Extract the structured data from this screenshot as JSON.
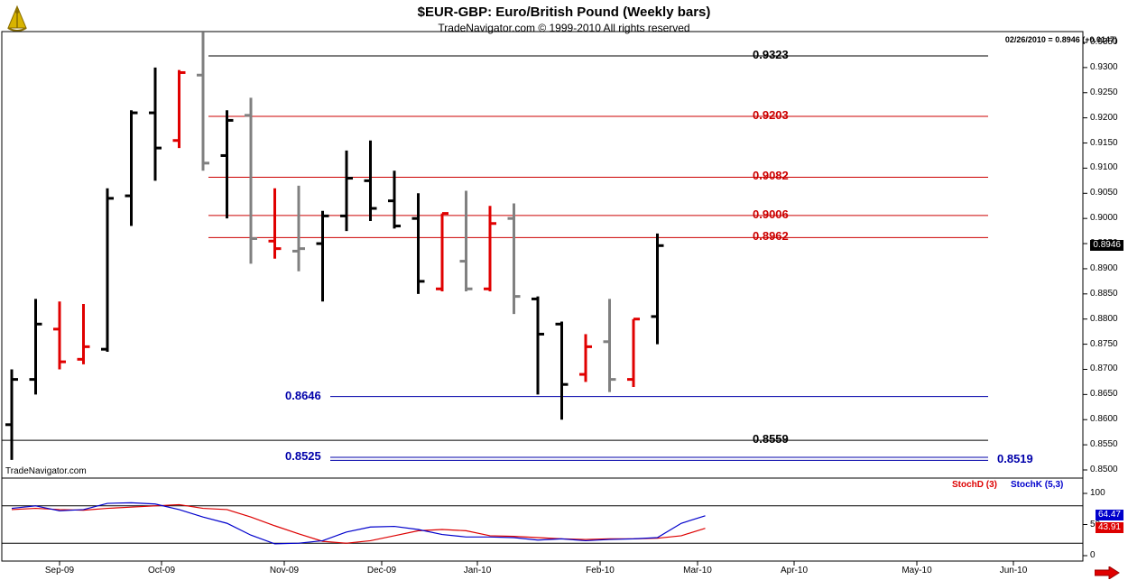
{
  "header": {
    "title": "$EUR-GBP:  Euro/British Pound  (Weekly bars)",
    "subtitle": "TradeNavigator.com © 1999-2010 All rights reserved"
  },
  "readout": "02/26/2010 = 0.8946 (+0.0147)",
  "watermark": "TradeNavigator.com",
  "colors": {
    "up": "#000000",
    "down": "#e00000",
    "neutral": "#808080",
    "support": "#0000aa",
    "resistance": "#cc0000",
    "stochK": "#0000cc",
    "stochD": "#dd0000"
  },
  "chart_data": [
    {
      "type": "ohlc",
      "title": "$EUR-GBP:  Euro/British Pound  (Weekly bars)",
      "ylim": [
        0.85,
        0.935
      ],
      "y_ticks": [
        "0.9350",
        "0.9300",
        "0.9250",
        "0.9200",
        "0.9150",
        "0.9100",
        "0.9050",
        "0.9000",
        "0.8950",
        "0.8900",
        "0.8850",
        "0.8800",
        "0.8750",
        "0.8700",
        "0.8650",
        "0.8600",
        "0.8550",
        "0.8500"
      ],
      "x_labels": [
        "Sep-09",
        "Oct-09",
        "Nov-09",
        "Dec-09",
        "Jan-10",
        "Feb-10",
        "Mar-10",
        "Apr-10",
        "May-10",
        "Jun-10"
      ],
      "last_price": "0.8946",
      "bars": [
        {
          "o": 0.859,
          "h": 0.87,
          "l": 0.852,
          "c": 0.868,
          "color": "up"
        },
        {
          "o": 0.868,
          "h": 0.884,
          "l": 0.865,
          "c": 0.879,
          "color": "up"
        },
        {
          "o": 0.878,
          "h": 0.8835,
          "l": 0.87,
          "c": 0.8715,
          "color": "down"
        },
        {
          "o": 0.872,
          "h": 0.883,
          "l": 0.871,
          "c": 0.8745,
          "color": "down"
        },
        {
          "o": 0.874,
          "h": 0.906,
          "l": 0.8735,
          "c": 0.904,
          "color": "up"
        },
        {
          "o": 0.9045,
          "h": 0.9215,
          "l": 0.8985,
          "c": 0.921,
          "color": "up"
        },
        {
          "o": 0.921,
          "h": 0.93,
          "l": 0.9075,
          "c": 0.914,
          "color": "up"
        },
        {
          "o": 0.9155,
          "h": 0.9295,
          "l": 0.914,
          "c": 0.929,
          "color": "down"
        },
        {
          "o": 0.9285,
          "h": 0.937,
          "l": 0.9095,
          "c": 0.911,
          "color": "neutral"
        },
        {
          "o": 0.9125,
          "h": 0.9215,
          "l": 0.9,
          "c": 0.9195,
          "color": "up"
        },
        {
          "o": 0.9205,
          "h": 0.924,
          "l": 0.891,
          "c": 0.896,
          "color": "neutral"
        },
        {
          "o": 0.8955,
          "h": 0.906,
          "l": 0.892,
          "c": 0.894,
          "color": "down"
        },
        {
          "o": 0.8935,
          "h": 0.9065,
          "l": 0.8895,
          "c": 0.894,
          "color": "neutral"
        },
        {
          "o": 0.895,
          "h": 0.9015,
          "l": 0.8835,
          "c": 0.9005,
          "color": "up"
        },
        {
          "o": 0.9005,
          "h": 0.9135,
          "l": 0.8975,
          "c": 0.908,
          "color": "up"
        },
        {
          "o": 0.9075,
          "h": 0.9155,
          "l": 0.8995,
          "c": 0.902,
          "color": "up"
        },
        {
          "o": 0.9035,
          "h": 0.9095,
          "l": 0.898,
          "c": 0.8985,
          "color": "up"
        },
        {
          "o": 0.9,
          "h": 0.905,
          "l": 0.885,
          "c": 0.8875,
          "color": "up"
        },
        {
          "o": 0.886,
          "h": 0.901,
          "l": 0.8855,
          "c": 0.901,
          "color": "down"
        },
        {
          "o": 0.8915,
          "h": 0.9055,
          "l": 0.8855,
          "c": 0.886,
          "color": "neutral"
        },
        {
          "o": 0.886,
          "h": 0.9025,
          "l": 0.8855,
          "c": 0.899,
          "color": "down"
        },
        {
          "o": 0.9,
          "h": 0.903,
          "l": 0.881,
          "c": 0.8845,
          "color": "neutral"
        },
        {
          "o": 0.884,
          "h": 0.8845,
          "l": 0.865,
          "c": 0.877,
          "color": "up"
        },
        {
          "o": 0.879,
          "h": 0.8795,
          "l": 0.86,
          "c": 0.867,
          "color": "up"
        },
        {
          "o": 0.869,
          "h": 0.877,
          "l": 0.8675,
          "c": 0.8745,
          "color": "down"
        },
        {
          "o": 0.8755,
          "h": 0.884,
          "l": 0.8655,
          "c": 0.868,
          "color": "neutral"
        },
        {
          "o": 0.868,
          "h": 0.88,
          "l": 0.8665,
          "c": 0.88,
          "color": "down"
        },
        {
          "o": 0.8805,
          "h": 0.897,
          "l": 0.875,
          "c": 0.8946,
          "color": "up"
        }
      ],
      "levels": [
        {
          "label": "0.9323",
          "value": 0.9323,
          "color": "black"
        },
        {
          "label": "0.9203",
          "value": 0.9203,
          "color": "red"
        },
        {
          "label": "0.9082",
          "value": 0.9082,
          "color": "red"
        },
        {
          "label": "0.9006",
          "value": 0.9006,
          "color": "red"
        },
        {
          "label": "0.8962",
          "value": 0.8962,
          "color": "red"
        },
        {
          "label": "0.8646",
          "value": 0.8646,
          "color": "blue"
        },
        {
          "label": "0.8559",
          "value": 0.8559,
          "color": "black"
        },
        {
          "label": "0.8525",
          "value": 0.8525,
          "color": "blue"
        },
        {
          "label": "0.8519",
          "value": 0.8519,
          "color": "blue"
        }
      ]
    },
    {
      "type": "line",
      "ylim": [
        0,
        100
      ],
      "y_ticks": [
        "100",
        "50",
        "0"
      ],
      "series": [
        {
          "name": "StochD (3)",
          "color": "red",
          "last_label": "43.91",
          "values": [
            74,
            76,
            74,
            73,
            76,
            78,
            80,
            82,
            76,
            74,
            62,
            48,
            35,
            23,
            20,
            24,
            32,
            40,
            42,
            40,
            32,
            31,
            29,
            27,
            26,
            27,
            27,
            28,
            32,
            44
          ]
        },
        {
          "name": "StochK (5,3)",
          "color": "blue",
          "last_label": "64.47",
          "values": [
            76,
            80,
            72,
            74,
            84,
            85,
            83,
            74,
            62,
            52,
            33,
            19,
            20,
            24,
            38,
            46,
            47,
            42,
            34,
            30,
            30,
            29,
            25,
            27,
            24,
            26,
            27,
            29,
            52,
            64
          ]
        }
      ]
    }
  ]
}
